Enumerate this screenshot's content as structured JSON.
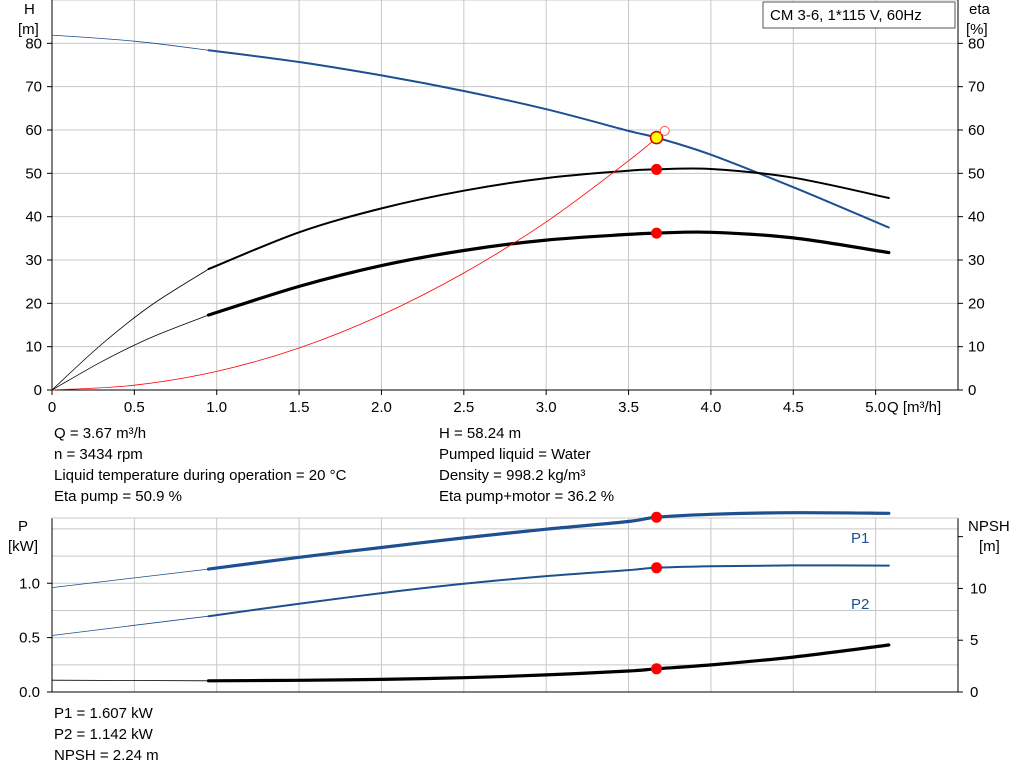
{
  "chart_data": [
    {
      "type": "line",
      "title": "CM 3-6, 1*115 V, 60Hz",
      "xlabel": "Q [m³/h]",
      "ylabel_left": [
        "H",
        "[m]"
      ],
      "ylabel_right": [
        "eta",
        "[%]"
      ],
      "xlim": [
        0,
        5.5
      ],
      "ylim": [
        0,
        90
      ],
      "xticks": [
        "0",
        "0.5",
        "1.0",
        "1.5",
        "2.0",
        "2.5",
        "3.0",
        "3.5",
        "4.0",
        "4.5",
        "5.0"
      ],
      "yticks": [
        "0",
        "10",
        "20",
        "30",
        "40",
        "50",
        "60",
        "70",
        "80"
      ],
      "grid": true,
      "series": [
        {
          "color": "#1d4f91",
          "x": [
            0,
            0.5,
            0.95,
            1.5,
            2.0,
            2.5,
            3.0,
            3.5,
            3.67,
            4.0,
            4.5,
            5.08
          ],
          "y": [
            81.9,
            80.5,
            78.4,
            75.7,
            72.6,
            69.0,
            64.8,
            59.8,
            58.24,
            54.3,
            46.8,
            37.5
          ],
          "valid_from": 0.95
        },
        {
          "color": "#000000",
          "x": [
            0,
            0.3,
            0.6,
            0.95,
            1.5,
            2.0,
            2.5,
            3.0,
            3.5,
            3.67,
            4.0,
            4.5,
            5.08
          ],
          "y": [
            0,
            10.5,
            19.5,
            27.9,
            36.4,
            41.9,
            46.0,
            48.9,
            50.6,
            50.9,
            51.0,
            49.0,
            44.3
          ],
          "valid_from": 0.95
        },
        {
          "color": "#000000",
          "x": [
            0,
            0.3,
            0.6,
            0.95,
            1.5,
            2.0,
            2.5,
            3.0,
            3.5,
            3.67,
            4.0,
            4.5,
            5.08
          ],
          "y": [
            0,
            6.5,
            12.1,
            17.3,
            23.9,
            28.7,
            32.2,
            34.6,
            35.9,
            36.2,
            36.4,
            35.1,
            31.7
          ],
          "valid_from": 0.95,
          "bold": true
        },
        {
          "color": "#ff0000",
          "x": [
            0,
            0.5,
            1.0,
            1.5,
            2.0,
            2.5,
            3.0,
            3.5,
            3.72
          ],
          "y": [
            0,
            1.1,
            4.3,
            9.7,
            17.3,
            27.0,
            38.8,
            52.9,
            59.8
          ],
          "thin": true
        }
      ],
      "operating_points": [
        {
          "x": 3.67,
          "y": 58.24,
          "style": "yellow"
        },
        {
          "x": 3.67,
          "y": 50.9,
          "style": "red"
        },
        {
          "x": 3.67,
          "y": 36.2,
          "style": "red"
        },
        {
          "x": 3.72,
          "y": 59.8,
          "style": "hollow"
        }
      ]
    },
    {
      "type": "line",
      "ylabel_left": [
        "P",
        "[kW]"
      ],
      "ylabel_right": [
        "NPSH",
        "[m]"
      ],
      "xlim": [
        0,
        5.5
      ],
      "ylim_left": [
        0,
        1.6
      ],
      "ylim_right": [
        0,
        16.8
      ],
      "yticks_left": [
        "0.0",
        "0.5",
        "1.0"
      ],
      "yticks_right": [
        "0",
        "5",
        "10"
      ],
      "grid": true,
      "series": [
        {
          "name": "P1",
          "color": "#1d4f91",
          "axis": "left",
          "x": [
            0,
            0.95,
            1.5,
            2.0,
            2.5,
            3.0,
            3.5,
            3.67,
            4.0,
            4.5,
            5.08
          ],
          "y": [
            0.96,
            1.13,
            1.239,
            1.329,
            1.417,
            1.497,
            1.568,
            1.607,
            1.634,
            1.649,
            1.643
          ],
          "valid_from": 0.95,
          "bold": true
        },
        {
          "name": "P2",
          "color": "#1d4f91",
          "axis": "left",
          "x": [
            0,
            0.95,
            1.5,
            2.0,
            2.5,
            3.0,
            3.5,
            3.67,
            4.0,
            4.5,
            5.08
          ],
          "y": [
            0.52,
            0.697,
            0.811,
            0.909,
            0.995,
            1.066,
            1.121,
            1.142,
            1.156,
            1.164,
            1.162
          ],
          "valid_from": 0.95
        },
        {
          "color": "#000000",
          "axis": "right",
          "x": [
            0,
            0.95,
            1.5,
            2.0,
            2.5,
            3.0,
            3.5,
            3.67,
            4.0,
            4.5,
            5.08
          ],
          "y": [
            1.14,
            1.08,
            1.13,
            1.22,
            1.38,
            1.65,
            2.03,
            2.24,
            2.62,
            3.37,
            4.54
          ],
          "valid_from": 0.95,
          "bold": true
        }
      ],
      "operating_points": [
        {
          "x": 3.67,
          "y": 1.607,
          "axis": "left",
          "style": "red"
        },
        {
          "x": 3.67,
          "y": 1.142,
          "axis": "left",
          "style": "red"
        },
        {
          "x": 3.67,
          "y": 2.24,
          "axis": "right",
          "style": "red"
        }
      ]
    }
  ],
  "info_top_left": [
    "Q = 3.67 m³/h",
    "n = 3434 rpm",
    "Liquid temperature during operation = 20 °C",
    "Eta pump = 50.9 %"
  ],
  "info_top_right": [
    "H = 58.24 m",
    "Pumped liquid = Water",
    "Density = 998.2 kg/m³",
    "Eta pump+motor = 36.2 %"
  ],
  "info_bottom": [
    "P1 = 1.607 kW",
    "P2 = 1.142 kW",
    "NPSH = 2.24 m"
  ]
}
